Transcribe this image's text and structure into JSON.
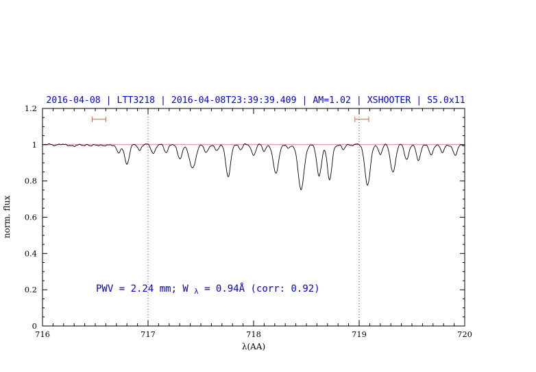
{
  "colors": {
    "title_blue": "#0000e0",
    "annotation_blue": "#0000e0",
    "spectrum_black": "#000000",
    "continuum_red": "#e87b7b",
    "marker_red": "#e05858",
    "vline_gray": "#444444",
    "axis_black": "#000000"
  },
  "chart_data": {
    "type": "line",
    "title": "2016-04-08 | LTT3218 | 2016-04-08T23:39:39.409 | AM=1.02 | XSHOOTER | S5.0x11",
    "xlabel": "λ(AA)",
    "ylabel": "norm. flux",
    "xlim": [
      716,
      720
    ],
    "ylim": [
      0,
      1.2
    ],
    "grid": "off",
    "xticks": [
      716,
      717,
      718,
      719,
      720
    ],
    "xtick_labels": [
      "716",
      "717",
      "718",
      "719",
      "720"
    ],
    "xminor_step": 0.1,
    "yticks": [
      0,
      0.2,
      0.4,
      0.6,
      0.8,
      1,
      1.2
    ],
    "ytick_labels": [
      "0",
      "0.2",
      "0.4",
      "0.6",
      "0.8",
      "1",
      "1.2"
    ],
    "yminor_step": 0.05,
    "continuum_y": 1.0,
    "vlines": [
      717,
      719
    ],
    "band_markers": [
      {
        "x1": 716.47,
        "x2": 716.6,
        "y": 1.14
      },
      {
        "x1": 718.96,
        "x2": 719.09,
        "y": 1.14
      }
    ],
    "annotation": {
      "prefix": "PWV = 2.24 mm; W",
      "sub": "λ",
      "suffix": " = 0.94Å (corr: 0.92)"
    },
    "spectrum": {
      "continuum": 1.0,
      "sample_step": 0.004,
      "ripple": [
        [
          0.0035,
          47.0,
          0.0
        ],
        [
          0.0022,
          89.0,
          1.3
        ],
        [
          0.0014,
          193.0,
          0.7
        ]
      ],
      "absorption_lines": [
        [
          716.3,
          0.012,
          0.018
        ],
        [
          716.45,
          0.01,
          0.015
        ],
        [
          716.58,
          0.012,
          0.015
        ],
        [
          716.72,
          0.05,
          0.018
        ],
        [
          716.8,
          0.105,
          0.022
        ],
        [
          716.92,
          0.03,
          0.015
        ],
        [
          717.05,
          0.045,
          0.02
        ],
        [
          717.17,
          0.04,
          0.018
        ],
        [
          717.3,
          0.075,
          0.022
        ],
        [
          717.42,
          0.13,
          0.03
        ],
        [
          717.55,
          0.045,
          0.018
        ],
        [
          717.65,
          0.035,
          0.018
        ],
        [
          717.76,
          0.18,
          0.022
        ],
        [
          717.88,
          0.025,
          0.015
        ],
        [
          718.0,
          0.055,
          0.02
        ],
        [
          718.1,
          0.035,
          0.015
        ],
        [
          718.21,
          0.16,
          0.025
        ],
        [
          718.33,
          0.025,
          0.015
        ],
        [
          718.45,
          0.25,
          0.028
        ],
        [
          718.62,
          0.175,
          0.022
        ],
        [
          718.72,
          0.195,
          0.022
        ],
        [
          718.85,
          0.03,
          0.015
        ],
        [
          719.08,
          0.22,
          0.026
        ],
        [
          719.2,
          0.05,
          0.018
        ],
        [
          719.32,
          0.15,
          0.024
        ],
        [
          719.45,
          0.08,
          0.02
        ],
        [
          719.56,
          0.085,
          0.02
        ],
        [
          719.68,
          0.06,
          0.018
        ],
        [
          719.79,
          0.045,
          0.018
        ],
        [
          719.91,
          0.06,
          0.02
        ]
      ]
    }
  }
}
